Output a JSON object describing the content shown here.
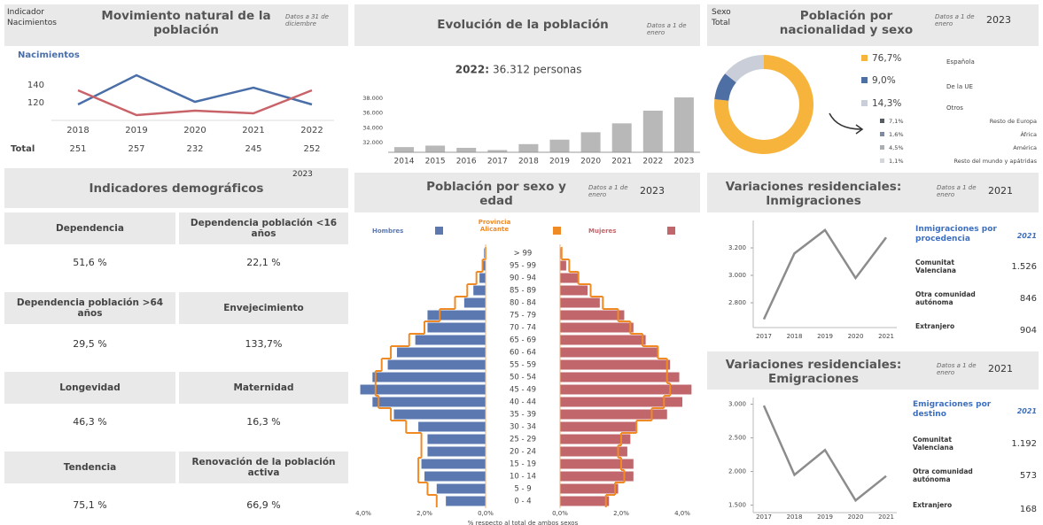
{
  "chart_data": [
    {
      "type": "line",
      "header_label": "Indicador",
      "header_value": "Nacimientos",
      "title": "Movimiento natural de la población",
      "note": "Datos a 31 de diciembre",
      "categories": [
        "2018",
        "2019",
        "2020",
        "2021",
        "2022"
      ],
      "series": [
        {
          "name": "Nacimientos",
          "color": "#4a6fa8",
          "values": [
            118,
            151,
            121,
            137,
            118
          ]
        },
        {
          "color": "#c9636a",
          "values": [
            134,
            106,
            111,
            108,
            134
          ]
        }
      ],
      "ylim": [
        100,
        158
      ],
      "yticks": [
        120,
        140
      ],
      "totals_label": "Total",
      "totals": [
        251,
        257,
        232,
        245,
        252
      ]
    },
    {
      "type": "bar",
      "title": "Evolución de la población",
      "note": "Datos a 1 de enero",
      "headline_year": "2022:",
      "headline_value": "36.312 personas",
      "categories": [
        "2014",
        "2015",
        "2016",
        "2017",
        "2018",
        "2019",
        "2020",
        "2021",
        "2022",
        "2023"
      ],
      "values": [
        31400,
        31600,
        31300,
        31000,
        31800,
        32400,
        33400,
        34600,
        36312,
        38100
      ],
      "color": "#b8b8b8",
      "ylim": [
        30700,
        38700
      ],
      "yticks": [
        {
          "value": 32000,
          "label": "32.000"
        },
        {
          "value": 34000,
          "label": "34.000"
        },
        {
          "value": 36000,
          "label": "36.000"
        },
        {
          "value": 38000,
          "label": "38.000"
        }
      ]
    },
    {
      "type": "donut",
      "header_label": "Sexo",
      "header_value": "Total",
      "title": "Población por nacionalidad y sexo",
      "note": "Datos a 1 de enero",
      "year": "2023",
      "categories": [
        "Española",
        "De la UE",
        "Otros"
      ],
      "values": [
        76.7,
        9.0,
        14.3
      ],
      "value_labels": [
        "76,7%",
        "9,0%",
        "14,3%"
      ],
      "colors": [
        "#f7b43c",
        "#4e6fa3",
        "#c9ced8"
      ],
      "breakdown": {
        "categories": [
          "Resto de Europa",
          "África",
          "América",
          "Resto del mundo y apátridas"
        ],
        "values": [
          7.1,
          1.6,
          4.5,
          1.1
        ],
        "value_labels": [
          "7,1%",
          "1,6%",
          "4,5%",
          "1,1%"
        ],
        "colors": [
          "#555c66",
          "#7d8aa3",
          "#a9adb5",
          "#d3d6db"
        ]
      }
    },
    {
      "type": "pyramid",
      "title": "Población por sexo y edad",
      "note": "Datos a 1 de enero",
      "year": "2023",
      "categories": [
        "> 99",
        "95 - 99",
        "90 - 94",
        "85 - 89",
        "80 - 84",
        "75 - 79",
        "70 - 74",
        "65 - 69",
        "60 - 64",
        "55 - 59",
        "50 - 54",
        "45 - 49",
        "40 - 44",
        "35 - 39",
        "30 - 34",
        "25 - 29",
        "20 - 24",
        "15 - 19",
        "10 - 14",
        "5 - 9",
        "0 - 4"
      ],
      "series": [
        {
          "name": "Hombres",
          "color": "#5b78b0",
          "values": [
            0.05,
            0.1,
            0.2,
            0.4,
            0.7,
            1.9,
            1.9,
            2.3,
            2.9,
            3.2,
            3.7,
            4.1,
            3.7,
            3.0,
            2.2,
            1.9,
            1.9,
            2.1,
            2.0,
            1.6,
            1.3
          ]
        },
        {
          "name": "Mujeres",
          "color": "#c1666b",
          "values": [
            0.05,
            0.2,
            0.6,
            0.9,
            1.3,
            2.1,
            2.4,
            2.8,
            3.2,
            3.6,
            3.9,
            4.3,
            4.0,
            3.5,
            2.5,
            2.3,
            2.2,
            2.4,
            2.4,
            1.9,
            1.6
          ]
        }
      ],
      "reference": {
        "name": "Provincia Alicante",
        "color": "#f08a24",
        "values_men": [
          0.0,
          0.1,
          0.3,
          0.6,
          1.0,
          1.5,
          2.0,
          2.5,
          3.1,
          3.4,
          3.6,
          3.6,
          3.5,
          3.1,
          2.6,
          2.1,
          2.1,
          2.2,
          2.2,
          1.9,
          1.6
        ],
        "values_women": [
          0.05,
          0.3,
          0.6,
          1.0,
          1.4,
          1.9,
          2.3,
          2.7,
          3.2,
          3.5,
          3.5,
          3.6,
          3.4,
          3.0,
          2.5,
          2.0,
          1.9,
          2.0,
          2.1,
          1.8,
          1.5
        ]
      },
      "xlim": [
        0,
        4
      ],
      "xticks_men": [
        {
          "value": 4,
          "label": "4,0%"
        },
        {
          "value": 2,
          "label": "2,0%"
        },
        {
          "value": 0,
          "label": "0,0%"
        }
      ],
      "xticks_women": [
        {
          "value": 0,
          "label": "0,0%"
        },
        {
          "value": 2,
          "label": "2,0%"
        },
        {
          "value": 4,
          "label": "4,0%"
        }
      ],
      "xlabel": "% respecto al total de ambos sexos"
    },
    {
      "type": "line",
      "title": "Variaciones residenciales: Inmigraciones",
      "note": "Datos a 1 de enero",
      "year": "2021",
      "categories": [
        "2017",
        "2018",
        "2019",
        "2020",
        "2021"
      ],
      "values": [
        2680,
        3160,
        3330,
        2980,
        3276
      ],
      "color": "#8c8c8c",
      "ylim": [
        2600,
        3400
      ],
      "yticks": [
        {
          "value": 2800,
          "label": "2.800"
        },
        {
          "value": 3000,
          "label": "3.000"
        },
        {
          "value": 3200,
          "label": "3.200"
        }
      ],
      "table": {
        "title": "Inmigraciones por procedencia",
        "year": "2021",
        "rows": [
          {
            "label": "Comunitat Valenciana",
            "value": "1.526"
          },
          {
            "label": "Otra comunidad autónoma",
            "value": "846"
          },
          {
            "label": "Extranjero",
            "value": "904"
          }
        ]
      }
    },
    {
      "type": "line",
      "title": "Variaciones residenciales: Emigraciones",
      "note": "Datos a 1 de enero",
      "year": "2021",
      "categories": [
        "2017",
        "2018",
        "2019",
        "2020",
        "2021"
      ],
      "values": [
        2980,
        1950,
        2320,
        1570,
        1933
      ],
      "color": "#8c8c8c",
      "ylim": [
        1350,
        3100
      ],
      "yticks": [
        {
          "value": 1500,
          "label": "1.500"
        },
        {
          "value": 2000,
          "label": "2.000"
        },
        {
          "value": 2500,
          "label": "2.500"
        },
        {
          "value": 3000,
          "label": "3.000"
        }
      ],
      "table": {
        "title": "Emigraciones por destino",
        "year": "2021",
        "rows": [
          {
            "label": "Comunitat Valenciana",
            "value": "1.192"
          },
          {
            "label": "Otra comunidad autónoma",
            "value": "573"
          },
          {
            "label": "Extranjero",
            "value": "168"
          }
        ]
      }
    }
  ],
  "indicators": {
    "title": "Indicadores demográficos",
    "year": "2023",
    "items": [
      {
        "label": "Dependencia",
        "value": "51,6 %"
      },
      {
        "label": "Dependencia población <16 años",
        "value": "22,1 %"
      },
      {
        "label": "Dependencia población >64 años",
        "value": "29,5 %"
      },
      {
        "label": "Envejecimiento",
        "value": "133,7%"
      },
      {
        "label": "Longevidad",
        "value": "46,3 %"
      },
      {
        "label": "Maternidad",
        "value": "16,3 %"
      },
      {
        "label": "Tendencia",
        "value": "75,1 %"
      },
      {
        "label": "Renovación de la población activa",
        "value": "66,9 %"
      }
    ]
  }
}
